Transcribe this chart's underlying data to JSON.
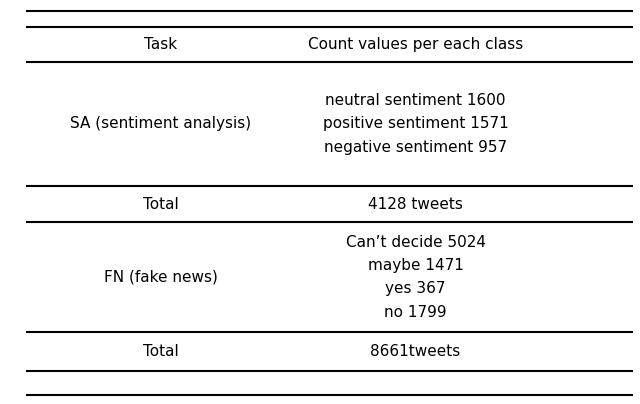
{
  "col_headers": [
    "Task",
    "Count values per each class"
  ],
  "rows": [
    {
      "task": "SA (sentiment analysis)",
      "counts": "neutral sentiment 1600\npositive sentiment 1571\nnegative sentiment 957",
      "is_total": false
    },
    {
      "task": "Total",
      "counts": "4128 tweets",
      "is_total": true
    },
    {
      "task": "FN (fake news)",
      "counts": "Can’t decide 5024\nmaybe 1471\nyes 367\nno 1799",
      "is_total": false
    },
    {
      "task": "Total",
      "counts": "8661tweets",
      "is_total": true
    }
  ],
  "font_size": 11,
  "header_font_size": 11,
  "background_color": "#ffffff",
  "text_color": "#000000",
  "line_color": "#000000",
  "fig_width": 6.4,
  "fig_height": 4.04
}
